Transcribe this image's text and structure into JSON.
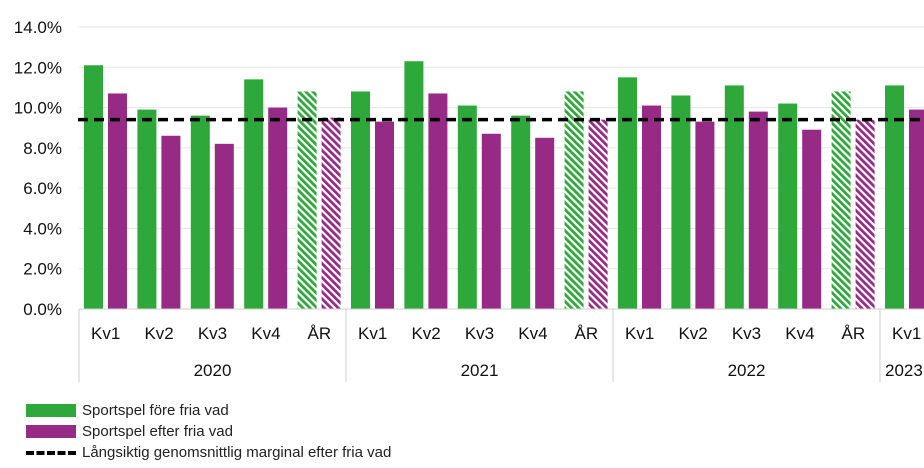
{
  "chart_data": {
    "type": "bar",
    "ylim": [
      0,
      14
    ],
    "yticks": [
      "0.0%",
      "2.0%",
      "4.0%",
      "6.0%",
      "8.0%",
      "10.0%",
      "12.0%",
      "14.0%"
    ],
    "groups": [
      {
        "year": "2020",
        "categories": [
          "Kv1",
          "Kv2",
          "Kv3",
          "Kv4",
          "ÅR"
        ]
      },
      {
        "year": "2021",
        "categories": [
          "Kv1",
          "Kv2",
          "Kv3",
          "Kv4",
          "ÅR"
        ]
      },
      {
        "year": "2022",
        "categories": [
          "Kv1",
          "Kv2",
          "Kv3",
          "Kv4",
          "ÅR"
        ]
      },
      {
        "year": "2023",
        "categories": [
          "Kv1"
        ]
      }
    ],
    "series": [
      {
        "name": "Sportspel före fria vad",
        "color": "#2ea83a",
        "values": [
          12.1,
          9.9,
          9.6,
          11.4,
          10.8,
          10.8,
          12.3,
          10.1,
          9.6,
          10.8,
          11.5,
          10.6,
          11.1,
          10.2,
          10.8,
          11.1
        ]
      },
      {
        "name": "Sportspel efter fria vad",
        "color": "#962a85",
        "values": [
          10.7,
          8.6,
          8.2,
          10.0,
          9.5,
          9.3,
          10.7,
          8.7,
          8.5,
          9.4,
          10.1,
          9.3,
          9.8,
          8.9,
          9.4,
          9.9
        ]
      }
    ],
    "hatched_categories": [
      "ÅR"
    ],
    "reference_line": {
      "name": "Långsiktig genomsnittlig marginal efter fria vad",
      "value": 9.4,
      "style": "dashed",
      "color": "#000000"
    },
    "grid": true,
    "legend_position": "bottom-left"
  }
}
